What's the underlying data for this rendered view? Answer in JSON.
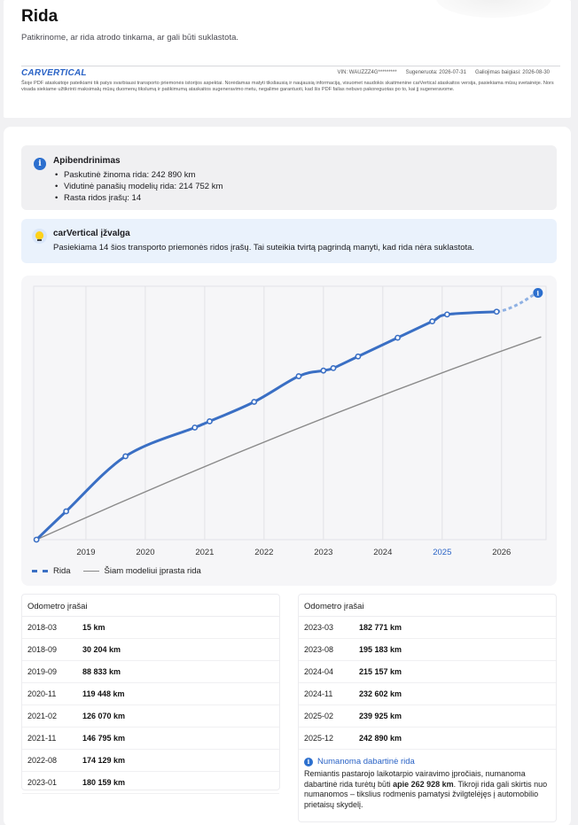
{
  "header": {
    "title": "Rida",
    "subtitle": "Patikrinome, ar rida atrodo tinkama, ar gali būti suklastota.",
    "brand": "CARVERTICAL",
    "vin": "VIN: WAUZZZ4G*********",
    "generated": "Sugeneruota: 2026-07-31",
    "valid_until": "Galiojimas baigiasi: 2026-08-30",
    "disclaimer": "Šioje PDF ataskaitoje pateikiami tik patys svarbiausi transporto priemonės istorijos aspektai. Norėdamas matyti tiksliausią ir naujausią informaciją, visuomet naudokis skaitmenine carVertical ataskaitos versija, pasiekiama mūsų svetainėje. Nors visada siekiame užtikrinti maksimalų mūsų duomenų tikslumą ir patikimumą ataskaitos sugeneravimo metu, negalime garantuoti, kad šis PDF failas nebuvo pakoreguotas po to, kai jį sugeneravome."
  },
  "summary": {
    "icon": "info-icon",
    "title": "Apibendrinimas",
    "items": [
      "Paskutinė žinoma rida: 242 890 km",
      "Vidutinė panašių modelių rida: 214 752 km",
      "Rasta ridos įrašų: 14"
    ]
  },
  "insight": {
    "icon": "lightbulb-icon",
    "title": "carVertical įžvalga",
    "text": "Pasiekiama 14 šios transporto priemonės ridos įrašų. Tai suteikia tvirtą pagrindą manyti, kad rida nėra suklastota."
  },
  "chart_data": {
    "type": "line",
    "x_ticks": [
      "2019",
      "2020",
      "2021",
      "2022",
      "2023",
      "2024",
      "2025",
      "2026"
    ],
    "highlighted_tick": "2025",
    "ylim": [
      0,
      270000
    ],
    "grid": true,
    "legend_position": "bottom-left",
    "series": [
      {
        "name": "Rida",
        "color": "#3a6fc4",
        "style": "solid-with-markers",
        "points": [
          [
            "2018-03",
            15
          ],
          [
            "2018-09",
            30204
          ],
          [
            "2019-09",
            88833
          ],
          [
            "2020-11",
            119448
          ],
          [
            "2021-02",
            126070
          ],
          [
            "2021-11",
            146795
          ],
          [
            "2022-08",
            174129
          ],
          [
            "2023-01",
            180159
          ],
          [
            "2023-03",
            182771
          ],
          [
            "2023-08",
            195183
          ],
          [
            "2024-04",
            215157
          ],
          [
            "2024-11",
            232602
          ],
          [
            "2025-02",
            239925
          ],
          [
            "2025-12",
            242890
          ]
        ]
      },
      {
        "name": "Rida (numanoma)",
        "color": "#8fb1e3",
        "style": "dashed",
        "points": [
          [
            "2025-12",
            242890
          ],
          [
            "2026-08",
            262928
          ]
        ]
      },
      {
        "name": "Šiam modeliui įprasta rida",
        "color": "#8a8a8a",
        "style": "solid",
        "points": [
          [
            "2018-03",
            0
          ],
          [
            "2026-09",
            216000
          ]
        ]
      }
    ],
    "legend": [
      "Rida",
      "Šiam modeliui įprasta rida"
    ]
  },
  "odometer": {
    "title": "Odometro įrašai",
    "left_rows": [
      {
        "date": "2018-03",
        "value": "15 km"
      },
      {
        "date": "2018-09",
        "value": "30 204 km"
      },
      {
        "date": "2019-09",
        "value": "88 833 km"
      },
      {
        "date": "2020-11",
        "value": "119 448 km"
      },
      {
        "date": "2021-02",
        "value": "126 070 km"
      },
      {
        "date": "2021-11",
        "value": "146 795 km"
      },
      {
        "date": "2022-08",
        "value": "174 129 km"
      },
      {
        "date": "2023-01",
        "value": "180 159 km"
      }
    ],
    "right_rows": [
      {
        "date": "2023-03",
        "value": "182 771 km"
      },
      {
        "date": "2023-08",
        "value": "195 183 km"
      },
      {
        "date": "2024-04",
        "value": "215 157 km"
      },
      {
        "date": "2024-11",
        "value": "232 602 km"
      },
      {
        "date": "2025-02",
        "value": "239 925 km"
      },
      {
        "date": "2025-12",
        "value": "242 890 km"
      }
    ],
    "estimate": {
      "title": "Numanoma dabartinė rida",
      "text_before": "Remiantis pastarojo laikotarpio vairavimo įpročiais, numanoma dabartinė rida turėtų būti ",
      "value": "apie 262 928 km",
      "text_after": ". Tikroji rida gali skirtis nuo numanomos – tikslius rodmenis pamatysi žvilgtelėjęs į automobilio prietaisų skydelį."
    }
  }
}
